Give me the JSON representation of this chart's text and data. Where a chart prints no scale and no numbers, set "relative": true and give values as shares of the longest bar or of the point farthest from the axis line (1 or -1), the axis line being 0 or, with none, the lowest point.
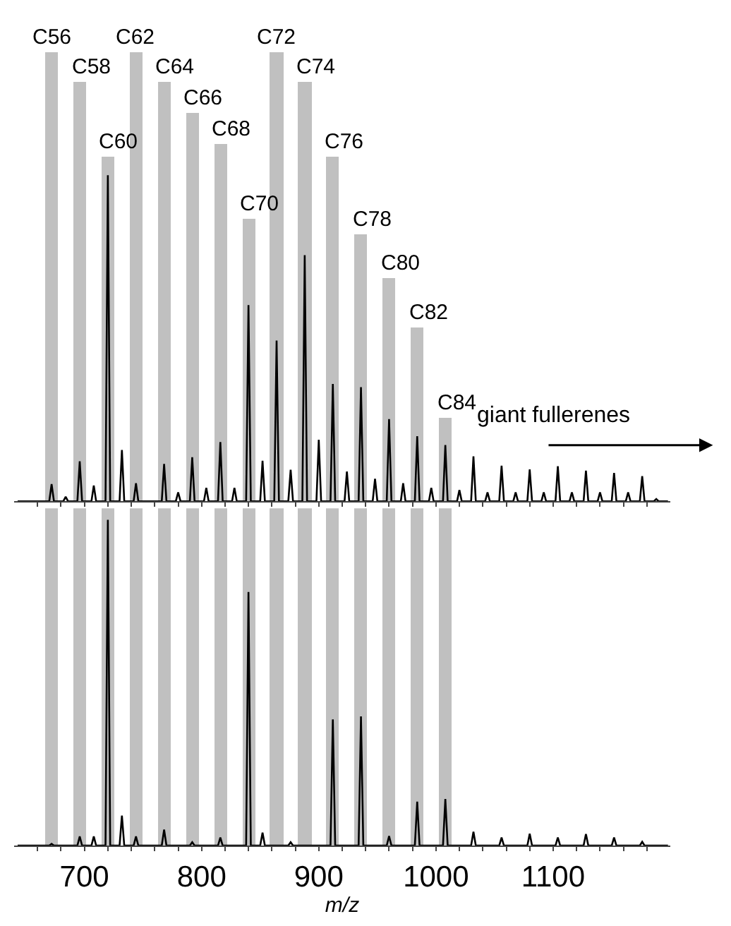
{
  "chart_data": [
    {
      "type": "bar",
      "relative": true,
      "x": [
        672,
        696,
        720,
        744,
        768,
        792,
        816,
        840,
        864,
        888,
        912,
        936,
        960,
        984,
        1008
      ],
      "series": [
        {
          "color": "#c0c0c0",
          "values": [
            1,
            0.934,
            0.766,
            1,
            0.934,
            0.866,
            0.795,
            0.629,
            1,
            0.934,
            0.766,
            0.594,
            0.497,
            0.388,
            0.186
          ]
        },
        {
          "type": "line",
          "color": "#000000",
          "x": [
            643,
            670,
            672,
            674,
            682,
            684,
            686,
            694,
            696,
            698,
            706,
            708,
            710,
            718,
            720,
            722,
            730,
            732,
            734,
            742,
            744,
            746,
            766,
            768,
            770,
            778,
            780,
            782,
            790,
            792,
            794,
            802,
            804,
            806,
            814,
            816,
            818,
            826,
            828,
            830,
            838,
            840,
            842,
            850,
            852,
            854,
            862,
            864,
            866,
            874,
            876,
            878,
            886,
            888,
            890,
            898,
            900,
            902,
            910,
            912,
            914,
            922,
            924,
            926,
            934,
            936,
            938,
            946,
            948,
            950,
            958,
            960,
            962,
            970,
            972,
            974,
            982,
            984,
            986,
            994,
            996,
            998,
            1006,
            1008,
            1010,
            1018,
            1020,
            1022,
            1030,
            1032,
            1034,
            1042,
            1044,
            1046,
            1054,
            1056,
            1058,
            1066,
            1068,
            1070,
            1078,
            1080,
            1082,
            1090,
            1092,
            1094,
            1102,
            1104,
            1106,
            1114,
            1116,
            1118,
            1126,
            1128,
            1130,
            1138,
            1140,
            1142,
            1150,
            1152,
            1154,
            1162,
            1164,
            1166,
            1174,
            1176,
            1178,
            1186,
            1188,
            1190,
            1198
          ],
          "values": [
            0,
            0,
            0.038,
            0,
            0,
            0.01,
            0,
            0,
            0.089,
            0,
            0,
            0.035,
            0,
            0,
            0.726,
            0,
            0,
            0.114,
            0,
            0,
            0.04,
            0,
            0,
            0.083,
            0,
            0,
            0.02,
            0,
            0,
            0.098,
            0,
            0,
            0.03,
            0,
            0,
            0.132,
            0,
            0,
            0.03,
            0,
            0,
            0.437,
            0,
            0,
            0.09,
            0,
            0,
            0.358,
            0,
            0,
            0.07,
            0,
            0,
            0.548,
            0,
            0,
            0.137,
            0,
            0,
            0.261,
            0,
            0,
            0.066,
            0,
            0,
            0.254,
            0,
            0,
            0.05,
            0,
            0,
            0.183,
            0,
            0,
            0.04,
            0,
            0,
            0.145,
            0,
            0,
            0.03,
            0,
            0,
            0.125,
            0,
            0,
            0.025,
            0,
            0,
            0.1,
            0,
            0,
            0.02,
            0,
            0,
            0.079,
            0,
            0,
            0.02,
            0,
            0,
            0.071,
            0,
            0,
            0.02,
            0,
            0,
            0.078,
            0,
            0,
            0.02,
            0,
            0,
            0.068,
            0,
            0,
            0.02,
            0,
            0,
            0.063,
            0,
            0,
            0.02,
            0,
            0,
            0.056,
            0,
            0,
            0.005,
            0,
            0
          ]
        }
      ],
      "xlim": [
        640,
        1200
      ],
      "xticks": [
        {
          "value": 660,
          "label": null
        },
        {
          "value": 680,
          "label": null
        },
        700,
        {
          "value": 720,
          "label": null
        },
        {
          "value": 740,
          "label": null
        },
        {
          "value": 760,
          "label": null
        },
        {
          "value": 780,
          "label": null
        },
        800,
        {
          "value": 820,
          "label": null
        },
        {
          "value": 840,
          "label": null
        },
        {
          "value": 860,
          "label": null
        },
        {
          "value": 880,
          "label": null
        },
        900,
        {
          "value": 920,
          "label": null
        },
        {
          "value": 940,
          "label": null
        },
        {
          "value": 960,
          "label": null
        },
        {
          "value": 980,
          "label": null
        },
        1000,
        {
          "value": 1020,
          "label": null
        },
        {
          "value": 1040,
          "label": null
        },
        {
          "value": 1060,
          "label": null
        },
        {
          "value": 1080,
          "label": null
        },
        1100,
        {
          "value": 1120,
          "label": null
        },
        {
          "value": 1140,
          "label": null
        },
        {
          "value": 1160,
          "label": null
        },
        {
          "value": 1180,
          "label": null
        }
      ],
      "tick_labels": false,
      "annotations": [
        "giant fullerenes",
        {
          "text": "C56",
          "x": 672,
          "y": 1
        },
        {
          "text": "C58",
          "x": 696,
          "y": 0.934
        },
        {
          "text": "C60",
          "x": 720,
          "y": 0.766
        },
        {
          "text": "C62",
          "x": 744,
          "y": 1
        },
        {
          "text": "C64",
          "x": 768,
          "y": 0.934
        },
        {
          "text": "C66",
          "x": 792,
          "y": 0.866
        },
        {
          "text": "C68",
          "x": 816,
          "y": 0.795
        },
        {
          "text": "C70",
          "x": 840,
          "y": 0.629
        },
        {
          "text": "C72",
          "x": 864,
          "y": 1
        },
        {
          "text": "C74",
          "x": 888,
          "y": 0.934
        },
        {
          "text": "C76",
          "x": 912,
          "y": 0.766
        },
        {
          "text": "C78",
          "x": 936,
          "y": 0.594
        },
        {
          "text": "C80",
          "x": 960,
          "y": 0.497
        },
        {
          "text": "C82",
          "x": 984,
          "y": 0.388
        },
        {
          "text": "C84",
          "x": 1008,
          "y": 0.186
        }
      ]
    },
    {
      "type": "bar",
      "relative": true,
      "x": [
        672,
        696,
        720,
        744,
        768,
        792,
        816,
        840,
        864,
        888,
        912,
        936,
        960,
        984,
        1008
      ],
      "series": [
        {
          "color": "#c0c0c0",
          "values": [
            1,
            1,
            1,
            1,
            1,
            1,
            1,
            1,
            1,
            1,
            1,
            1,
            1,
            1,
            1
          ]
        },
        {
          "type": "line",
          "color": "#000000",
          "x": [
            643,
            670,
            672,
            674,
            694,
            696,
            698,
            706,
            708,
            710,
            718,
            720,
            722,
            730,
            732,
            734,
            742,
            744,
            746,
            766,
            768,
            770,
            790,
            792,
            794,
            814,
            816,
            818,
            838,
            840,
            842,
            850,
            852,
            854,
            874,
            876,
            878,
            910,
            912,
            914,
            934,
            936,
            938,
            958,
            960,
            962,
            982,
            984,
            986,
            1006,
            1008,
            1010,
            1030,
            1032,
            1034,
            1054,
            1056,
            1058,
            1078,
            1080,
            1082,
            1102,
            1104,
            1106,
            1126,
            1128,
            1130,
            1150,
            1152,
            1154,
            1174,
            1176,
            1178,
            1198
          ],
          "values": [
            0,
            0,
            0.005,
            0,
            0,
            0.027,
            0,
            0,
            0.027,
            0,
            0,
            0.966,
            0,
            0,
            0.089,
            0,
            0,
            0.027,
            0,
            0,
            0.047,
            0,
            0,
            0.01,
            0,
            0,
            0.024,
            0,
            0,
            0.752,
            0,
            0,
            0.038,
            0,
            0,
            0.01,
            0,
            0,
            0.374,
            0,
            0,
            0.383,
            0,
            0,
            0.028,
            0,
            0,
            0.13,
            0,
            0,
            0.138,
            0,
            0,
            0.041,
            0,
            0,
            0.024,
            0,
            0,
            0.035,
            0,
            0,
            0.024,
            0,
            0,
            0.034,
            0,
            0,
            0.024,
            0,
            0,
            0.011,
            0,
            0
          ]
        }
      ],
      "xlim": [
        640,
        1200
      ],
      "xticks": [
        {
          "value": 660,
          "label": null
        },
        {
          "value": 680,
          "label": null
        },
        700,
        {
          "value": 720,
          "label": null
        },
        {
          "value": 740,
          "label": null
        },
        {
          "value": 760,
          "label": null
        },
        {
          "value": 780,
          "label": null
        },
        800,
        {
          "value": 820,
          "label": null
        },
        {
          "value": 840,
          "label": null
        },
        {
          "value": 860,
          "label": null
        },
        {
          "value": 880,
          "label": null
        },
        900,
        {
          "value": 920,
          "label": null
        },
        {
          "value": 940,
          "label": null
        },
        {
          "value": 960,
          "label": null
        },
        {
          "value": 980,
          "label": null
        },
        1000,
        {
          "value": 1020,
          "label": null
        },
        {
          "value": 1040,
          "label": null
        },
        {
          "value": 1060,
          "label": null
        },
        {
          "value": 1080,
          "label": null
        },
        1100,
        {
          "value": 1120,
          "label": null
        },
        {
          "value": 1140,
          "label": null
        },
        {
          "value": 1160,
          "label": null
        },
        {
          "value": 1180,
          "label": null
        }
      ],
      "tick_labels": "x",
      "xlabel": "m/z"
    }
  ]
}
